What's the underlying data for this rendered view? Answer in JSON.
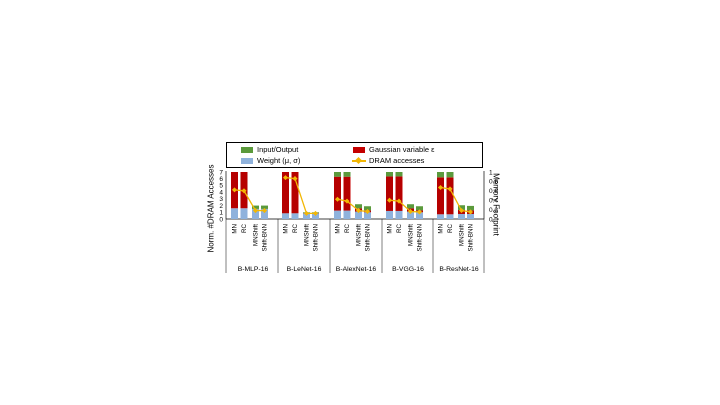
{
  "chart_data": {
    "type": "bar",
    "subtype": "stacked bar with line overlay",
    "groups": [
      "B-MLP-16",
      "B-LeNet-16",
      "B-AlexNet-16",
      "B-VGG-16",
      "B-ResNet-16"
    ],
    "categories": [
      "MN",
      "RC",
      "MNShift",
      "Shift-BNN"
    ],
    "ylabel": "Norm. #DRAM Accesses",
    "y2label": "Memory Footprint",
    "ylim": [
      0,
      7
    ],
    "y2lim": [
      0,
      1
    ],
    "yticks": [
      "0",
      "1",
      "2",
      "3",
      "4",
      "5",
      "6",
      "7"
    ],
    "y2ticks": [
      "0",
      "0.2",
      "0.4",
      "0.6",
      "0.8",
      "1"
    ],
    "legend_position": "top",
    "colors": {
      "io": "#5b9a3c",
      "weight": "#8fb2dc",
      "gaussian": "#c40000",
      "dram": "#f2b705"
    },
    "legend": {
      "io": "Input/Output",
      "gaussian": "Gaussian variable ε",
      "weight": "Weight (μ, σ)",
      "dram": "DRAM accesses"
    },
    "series": [
      {
        "name": "Weight (μ, σ)",
        "key": "weight",
        "values": [
          [
            1.6,
            1.6,
            1.5,
            1.5
          ],
          [
            0.85,
            0.85,
            0.85,
            0.85
          ],
          [
            1.25,
            1.25,
            1.1,
            1.0
          ],
          [
            1.2,
            1.2,
            1.1,
            1.0
          ],
          [
            0.7,
            0.7,
            0.75,
            0.75
          ]
        ]
      },
      {
        "name": "Gaussian variable ε",
        "key": "gaussian",
        "values": [
          [
            5.4,
            5.4,
            0.0,
            0.0
          ],
          [
            6.15,
            6.15,
            0.05,
            0.05
          ],
          [
            5.05,
            5.05,
            0.5,
            0.3
          ],
          [
            5.15,
            5.15,
            0.5,
            0.3
          ],
          [
            5.5,
            5.5,
            0.6,
            0.55
          ]
        ]
      },
      {
        "name": "Input/Output",
        "key": "io",
        "values": [
          [
            0.0,
            0.0,
            0.5,
            0.5
          ],
          [
            0.0,
            0.0,
            0.1,
            0.1
          ],
          [
            0.7,
            0.7,
            0.6,
            0.6
          ],
          [
            0.65,
            0.65,
            0.6,
            0.6
          ],
          [
            0.8,
            0.8,
            0.7,
            0.65
          ]
        ]
      },
      {
        "name": "DRAM accesses",
        "key": "dram",
        "axis": "secondary",
        "values": [
          [
            0.62,
            0.6,
            0.18,
            0.18
          ],
          [
            0.88,
            0.86,
            0.12,
            0.12
          ],
          [
            0.42,
            0.38,
            0.18,
            0.16
          ],
          [
            0.4,
            0.38,
            0.16,
            0.15
          ],
          [
            0.67,
            0.64,
            0.18,
            0.15
          ]
        ]
      }
    ]
  }
}
